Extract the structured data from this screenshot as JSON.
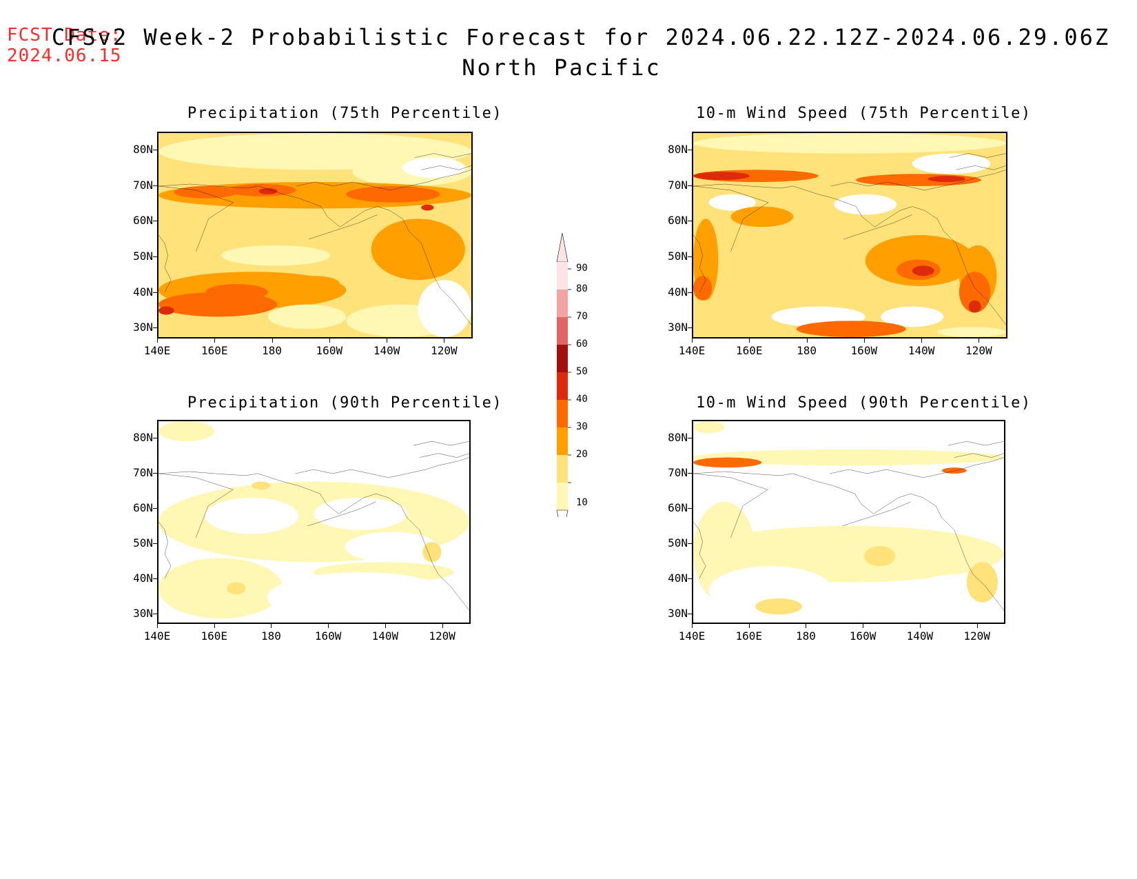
{
  "header": {
    "fcst_label": "FCST Date:",
    "fcst_date": "2024.06.15",
    "title_line1": "CFSv2 Week-2 Probabilistic Forecast for 2024.06.22.12Z-2024.06.29.06Z",
    "title_line2": "North Pacific"
  },
  "panels": [
    {
      "title": "Precipitation (75th Percentile)"
    },
    {
      "title": "10-m Wind Speed (75th Percentile)"
    },
    {
      "title": "Precipitation (90th Percentile)"
    },
    {
      "title": "10-m Wind Speed (90th Percentile)"
    }
  ],
  "axes": {
    "lat_labels": [
      "80N",
      "70N",
      "60N",
      "50N",
      "40N",
      "30N"
    ],
    "lon_labels": [
      "140E",
      "160E",
      "180",
      "160W",
      "140W",
      "120W"
    ]
  },
  "colorbar": {
    "labels": [
      "90",
      "80",
      "70",
      "60",
      "50",
      "40",
      "30",
      "20",
      "10"
    ],
    "colors": [
      "#fde4e4",
      "#f2a3a3",
      "#e06666",
      "#a30f0f",
      "#dc2a0a",
      "#ff6a00",
      "#ffa000",
      "#ffe27a",
      "#fff7b3"
    ]
  }
}
